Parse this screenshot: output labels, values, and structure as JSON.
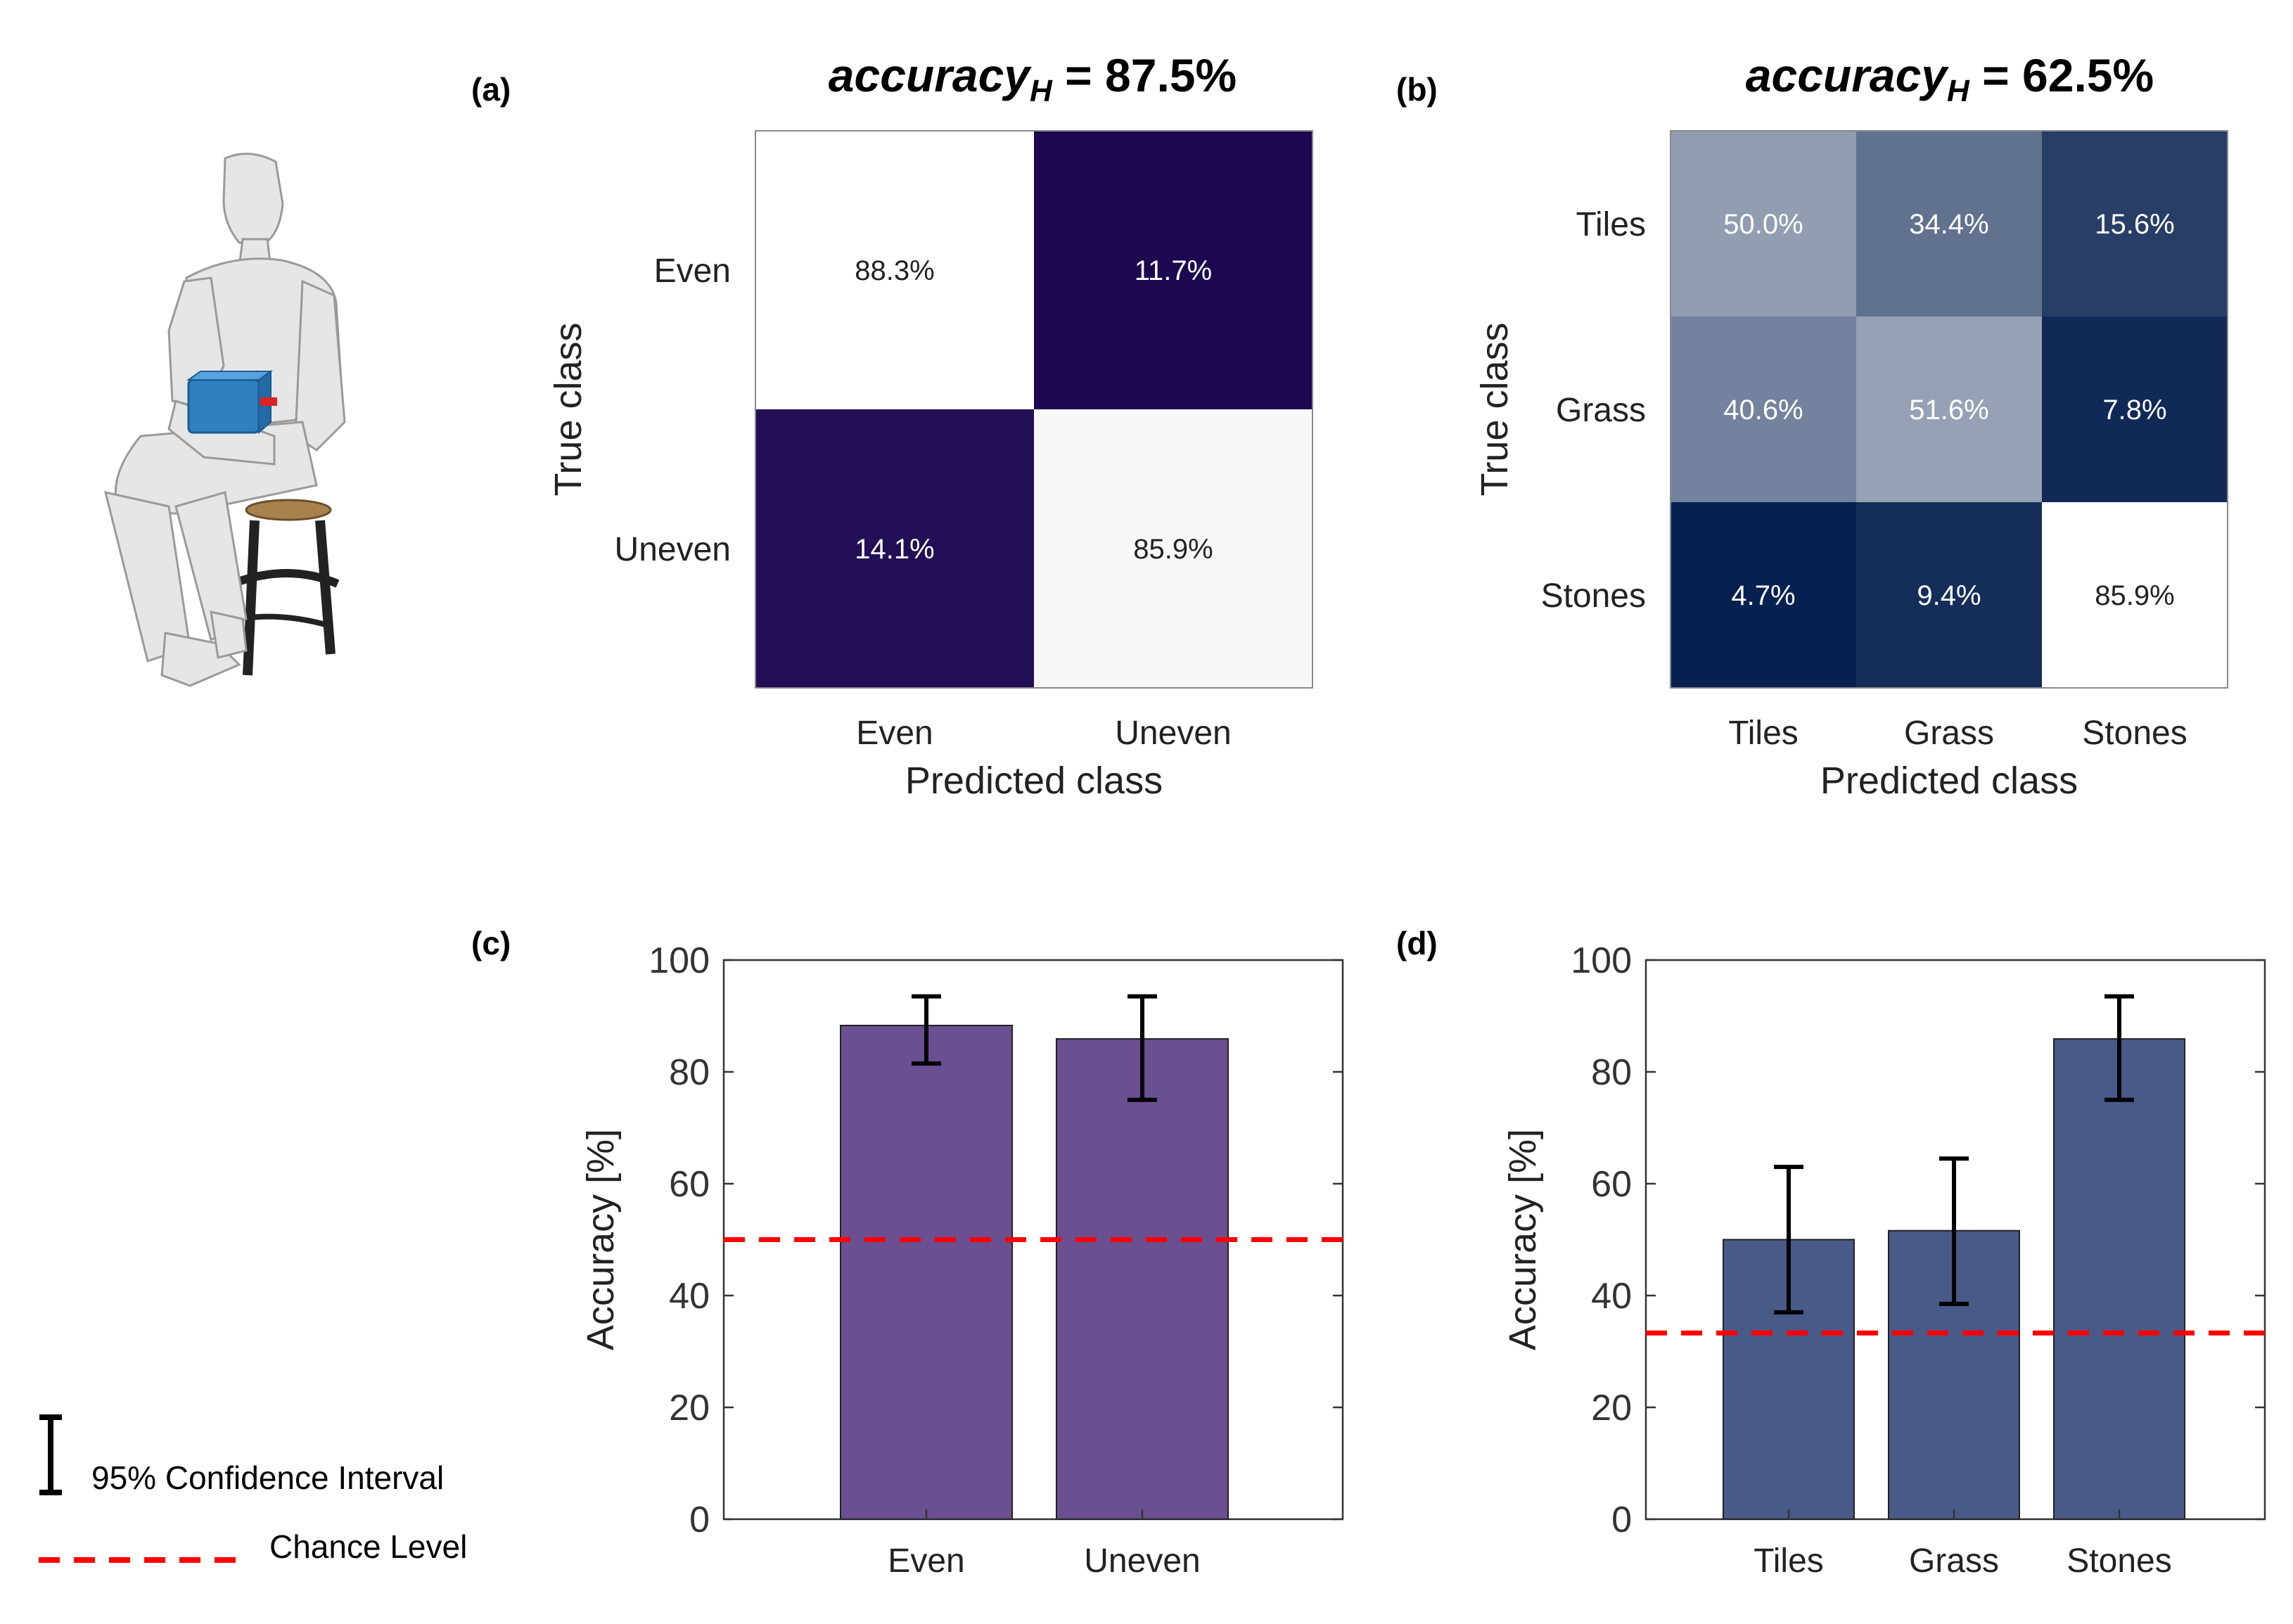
{
  "figure": {
    "panel_labels": [
      "(a)",
      "(b)",
      "(c)",
      "(d)"
    ],
    "legend": {
      "ci_label": "95% Confidence Interval",
      "chance_label": "Chance Level",
      "ci_color": "#000000",
      "chance_color": "#ff0000"
    },
    "illustration": {
      "description_icon": "seated-person-with-sensor-box-icon",
      "box_color": "#2f7fc1"
    }
  },
  "chart_data": [
    {
      "id": "a",
      "type": "heatmap",
      "title_main": "accuracy",
      "title_sub": "H",
      "title_value": " = 87.5%",
      "xlabel": "Predicted class",
      "ylabel": "True class",
      "classes": [
        "Even",
        "Uneven"
      ],
      "values": [
        [
          88.3,
          11.7
        ],
        [
          14.1,
          85.9
        ]
      ],
      "cell_labels": [
        [
          "88.3%",
          "11.7%"
        ],
        [
          "14.1%",
          "85.9%"
        ]
      ],
      "colormap": {
        "low": "#1c0750",
        "high": "#ffffff"
      }
    },
    {
      "id": "b",
      "type": "heatmap",
      "title_main": "accuracy",
      "title_sub": "H",
      "title_value": " = 62.5%",
      "xlabel": "Predicted class",
      "ylabel": "True class",
      "classes": [
        "Tiles",
        "Grass",
        "Stones"
      ],
      "values": [
        [
          50.0,
          34.4,
          15.6
        ],
        [
          40.6,
          51.6,
          7.8
        ],
        [
          4.7,
          9.4,
          85.9
        ]
      ],
      "cell_labels": [
        [
          "50.0%",
          "34.4%",
          "15.6%"
        ],
        [
          "40.6%",
          "51.6%",
          "7.8%"
        ],
        [
          "4.7%",
          "9.4%",
          "85.9%"
        ]
      ],
      "colormap": {
        "low": "#06214f",
        "high": "#ffffff"
      }
    },
    {
      "id": "c",
      "type": "bar",
      "ylabel": "Accuracy [%]",
      "xlabel": "",
      "ylim": [
        0,
        100
      ],
      "yticks": [
        0,
        20,
        40,
        60,
        80,
        100
      ],
      "categories": [
        "Even",
        "Uneven"
      ],
      "values": [
        88.3,
        85.9
      ],
      "ci_low": [
        81.5,
        75.0
      ],
      "ci_high": [
        93.5,
        93.5
      ],
      "chance_level": 50,
      "bar_color": "#6a4f91"
    },
    {
      "id": "d",
      "type": "bar",
      "ylabel": "Accuracy [%]",
      "xlabel": "",
      "ylim": [
        0,
        100
      ],
      "yticks": [
        0,
        20,
        40,
        60,
        80,
        100
      ],
      "categories": [
        "Tiles",
        "Grass",
        "Stones"
      ],
      "values": [
        50.0,
        51.6,
        85.9
      ],
      "ci_low": [
        37.0,
        38.5,
        75.0
      ],
      "ci_high": [
        63.0,
        64.5,
        93.5
      ],
      "chance_level": 33.3,
      "bar_color": "#485a88"
    }
  ]
}
